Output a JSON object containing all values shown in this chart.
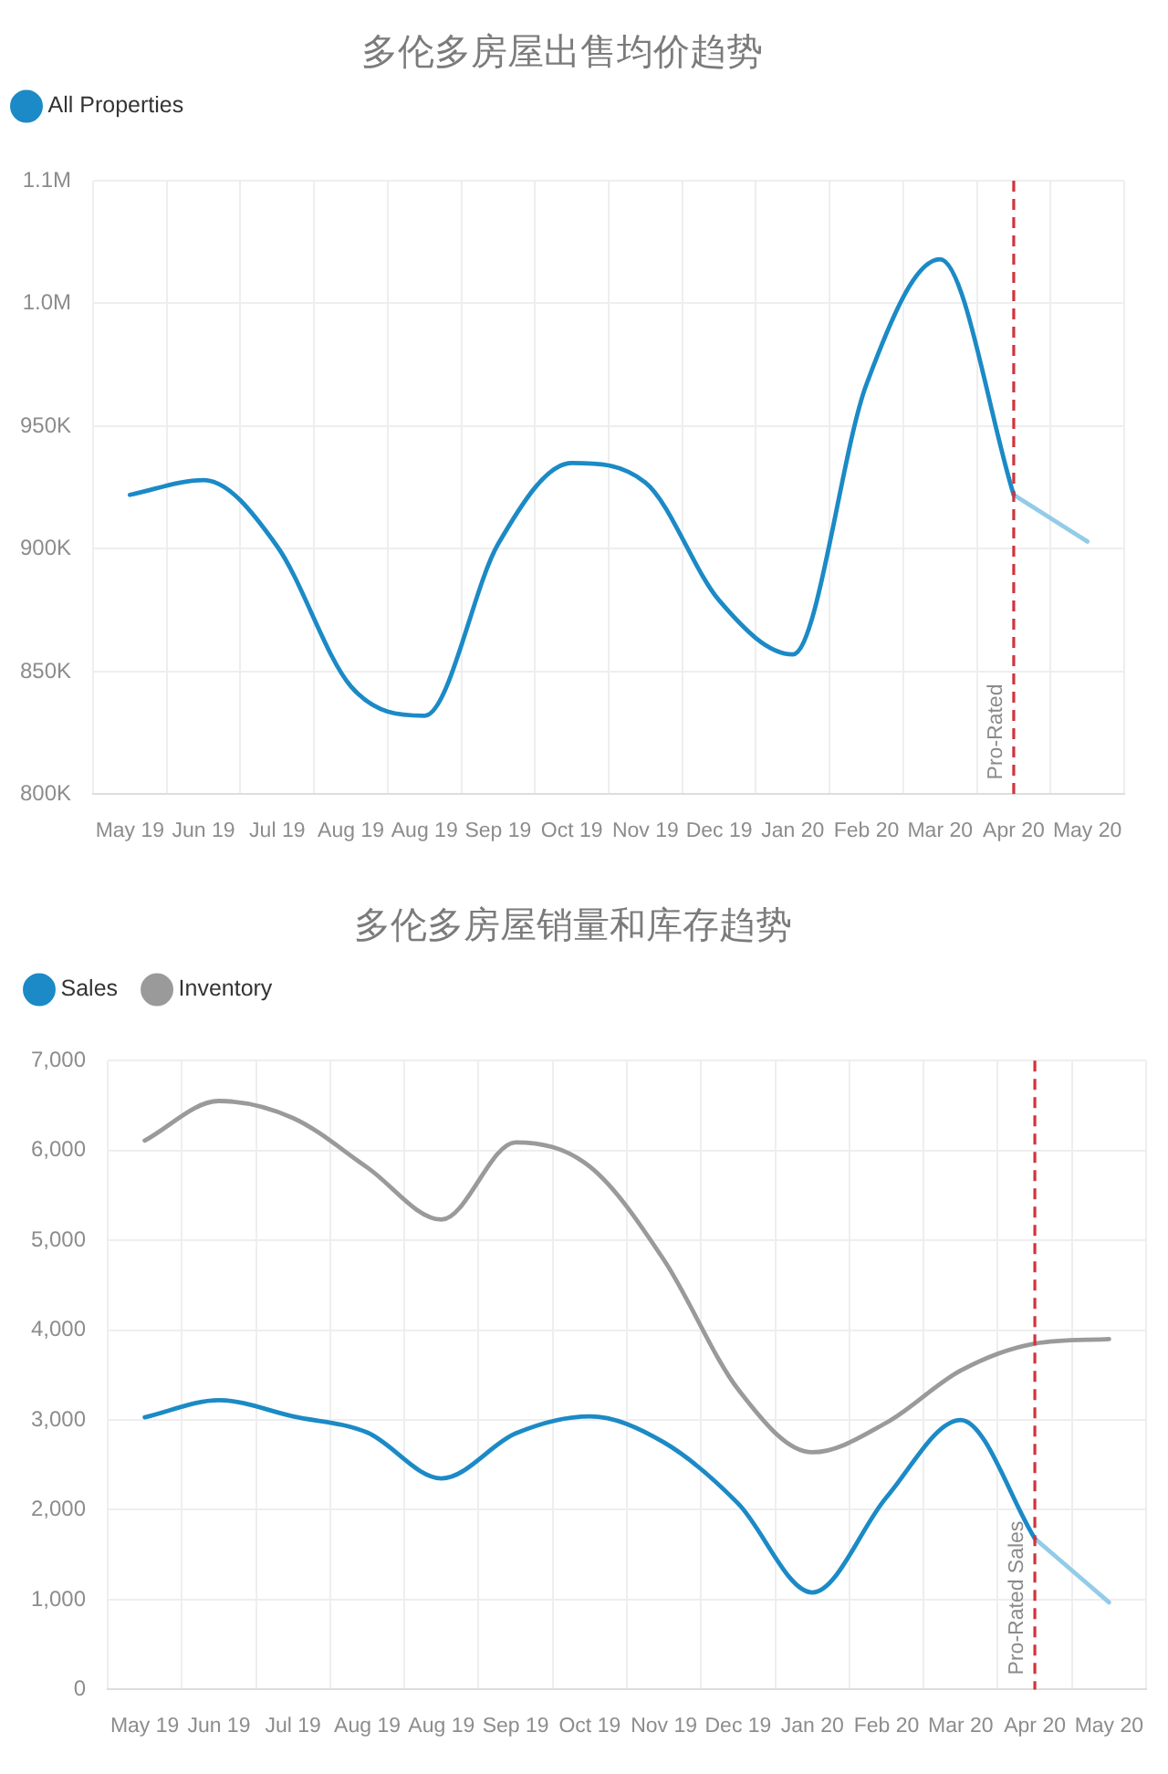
{
  "chart_data": [
    {
      "type": "line",
      "title": "多伦多房屋出售均价趋势",
      "categories": [
        "May 19",
        "Jun 19",
        "Jul 19",
        "Aug 19",
        "Aug 19",
        "Sep 19",
        "Oct 19",
        "Nov 19",
        "Dec 19",
        "Jan 20",
        "Feb 20",
        "Mar 20",
        "Apr 20",
        "May 20"
      ],
      "series": [
        {
          "name": "All Properties",
          "color": "#1b8ac6",
          "values": [
            922000,
            928000,
            901000,
            844000,
            832000,
            902000,
            935000,
            927000,
            879000,
            857000,
            967000,
            1018000,
            922000,
            null
          ]
        },
        {
          "color": "#93cce8",
          "values": [
            null,
            null,
            null,
            null,
            null,
            null,
            null,
            null,
            null,
            null,
            null,
            null,
            922000,
            903000
          ]
        }
      ],
      "ylim": [
        800000,
        1050000
      ],
      "yticks": [
        {
          "value": 800000,
          "label": "800K"
        },
        {
          "value": 850000,
          "label": "850K"
        },
        {
          "value": 900000,
          "label": "900K"
        },
        {
          "value": 950000,
          "label": "950K"
        },
        {
          "value": 1000000,
          "label": "1.0M"
        },
        {
          "value": 1050000,
          "label": "1.1M"
        }
      ],
      "grid": true,
      "legend": "top left",
      "marker": "none",
      "ref_lines": [
        {
          "axis": "x",
          "value": "Apr 20",
          "label": "Pro-Rated",
          "color": "#d1343c",
          "line_style": "dashed"
        }
      ]
    },
    {
      "type": "line",
      "title": "多伦多房屋销量和库存趋势",
      "categories": [
        "May 19",
        "Jun 19",
        "Jul 19",
        "Aug 19",
        "Aug 19",
        "Sep 19",
        "Oct 19",
        "Nov 19",
        "Dec 19",
        "Jan 20",
        "Feb 20",
        "Mar 20",
        "Apr 20",
        "May 20"
      ],
      "series": [
        {
          "name": "Sales",
          "color": "#1b8ac6",
          "values": [
            3030,
            3220,
            3040,
            2860,
            2350,
            2850,
            3040,
            2750,
            2070,
            1080,
            2140,
            3000,
            1680,
            null
          ]
        },
        {
          "name": "Inventory",
          "color": "#9a9a9a",
          "values": [
            6110,
            6550,
            6360,
            5810,
            5230,
            6090,
            5820,
            4780,
            3340,
            2640,
            2970,
            3550,
            3850,
            3900
          ]
        },
        {
          "color": "#93cce8",
          "values": [
            null,
            null,
            null,
            null,
            null,
            null,
            null,
            null,
            null,
            null,
            null,
            null,
            1680,
            970
          ]
        }
      ],
      "ylim": [
        0,
        7000
      ],
      "yticks": [
        0,
        {
          "value": 1000,
          "label": "1,000"
        },
        {
          "value": 2000,
          "label": "2,000"
        },
        {
          "value": 3000,
          "label": "3,000"
        },
        {
          "value": 4000,
          "label": "4,000"
        },
        {
          "value": 5000,
          "label": "5,000"
        },
        {
          "value": 6000,
          "label": "6,000"
        },
        {
          "value": 7000,
          "label": "7,000"
        }
      ],
      "grid": true,
      "legend": "top left",
      "marker": "none",
      "ref_lines": [
        {
          "axis": "x",
          "value": "Apr 20",
          "label": "Pro-Rated Sales",
          "color": "#d1343c",
          "line_style": "dashed"
        }
      ]
    }
  ]
}
